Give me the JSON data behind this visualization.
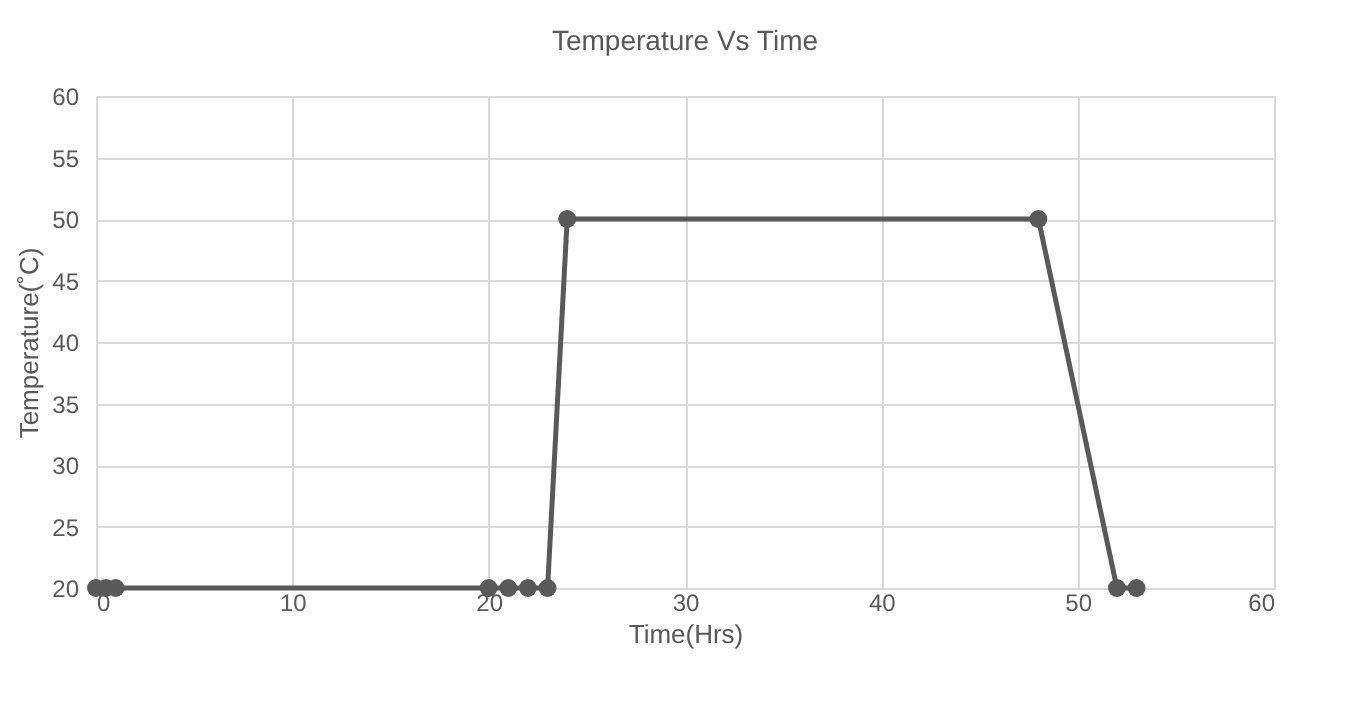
{
  "chart_data": {
    "type": "line",
    "title": "Temperature Vs Time",
    "xlabel": "Time(Hrs)",
    "ylabel": "Temperature(˚C)",
    "x": [
      0,
      0.5,
      1,
      20,
      21,
      22,
      23,
      24,
      48,
      52,
      53
    ],
    "series": [
      {
        "color": "#595959",
        "values": [
          20,
          20,
          20,
          20,
          20,
          20,
          20,
          50,
          50,
          20,
          20
        ]
      }
    ],
    "xlim": [
      0,
      60
    ],
    "xticks": [
      0,
      10,
      20,
      30,
      40,
      50,
      60
    ],
    "ylim": [
      20,
      60
    ],
    "yticks": [
      20,
      25,
      30,
      35,
      40,
      45,
      50,
      55,
      60
    ],
    "grid": true,
    "marker": "circle",
    "line_style": "solid",
    "legend": false
  }
}
